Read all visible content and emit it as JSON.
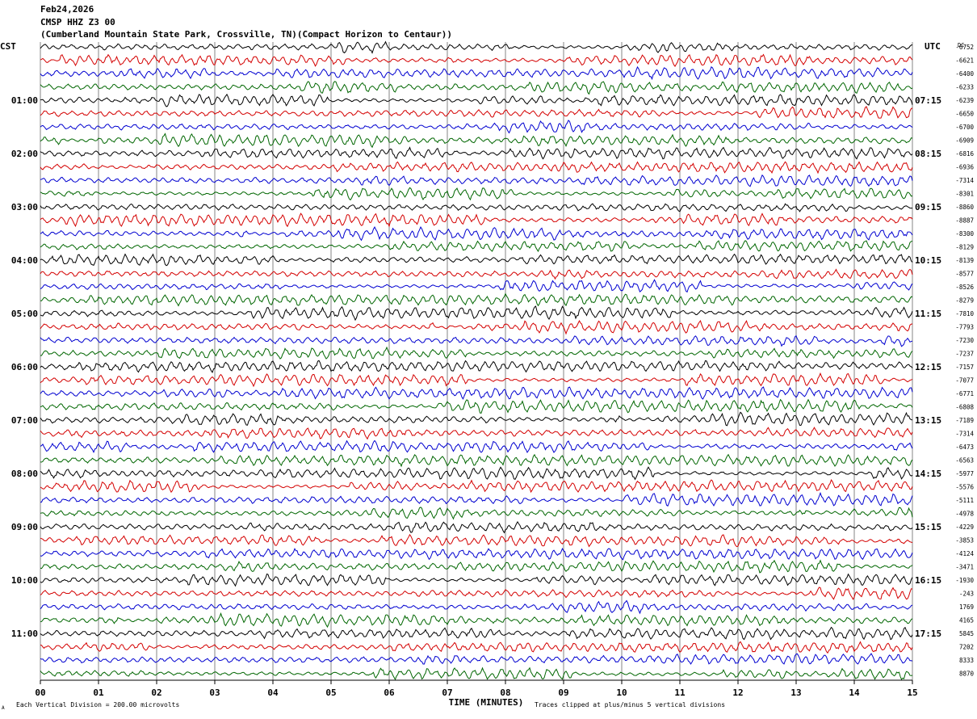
{
  "header": {
    "date": "Feb24,2026",
    "station": "CMSP HHZ Z3 00",
    "location": "(Cumberland Mountain State Park, Crossville, TN)(Compact Horizon to Centaur))"
  },
  "chart_data": {
    "type": "line",
    "title": "Feb24,2026",
    "left_axis_title": "CST",
    "right_axis_title": "UTC",
    "dc_label": "DC",
    "xlabel": "TIME (MINUTES)",
    "xlim": [
      0,
      15
    ],
    "x_ticks": [
      "00",
      "01",
      "02",
      "03",
      "04",
      "05",
      "06",
      "07",
      "08",
      "09",
      "10",
      "11",
      "12",
      "13",
      "14",
      "15"
    ],
    "grid": true,
    "trace_colors": [
      "#000000",
      "#d40000",
      "#0000d0",
      "#006600"
    ],
    "left_hour_labels": [
      "01:00",
      "02:00",
      "03:00",
      "04:00",
      "05:00",
      "06:00",
      "07:00",
      "08:00",
      "09:00",
      "10:00",
      "11:00"
    ],
    "right_hour_labels": [
      "07:15",
      "08:15",
      "09:15",
      "10:15",
      "11:15",
      "12:15",
      "13:15",
      "14:15",
      "15:15",
      "16:15",
      "17:15"
    ],
    "dc_offsets": [
      "-6752",
      "-6621",
      "-6400",
      "-6233",
      "-6239",
      "-6650",
      "-6700",
      "-6909",
      "-6816",
      "-6936",
      "-7314",
      "-8301",
      "-8860",
      "-8887",
      "-8300",
      "-8129",
      "-8139",
      "-8577",
      "-8526",
      "-8279",
      "-7810",
      "-7793",
      "-7230",
      "-7237",
      "-7157",
      "-7077",
      "-6771",
      "-6808",
      "-7189",
      "-7314",
      "-6473",
      "-6563",
      "-5977",
      "-5576",
      "-5111",
      "-4978",
      "-4229",
      "-3853",
      "-4124",
      "-3471",
      "-1930",
      "-243",
      "1769",
      "4165",
      "5845",
      "7202",
      "8333",
      "8870"
    ],
    "footer_left": "Each Vertical Division =  200.00 microvolts",
    "footer_right": "Traces clipped at plus/minus 5 vertical divisions",
    "corner_mark": "A"
  }
}
